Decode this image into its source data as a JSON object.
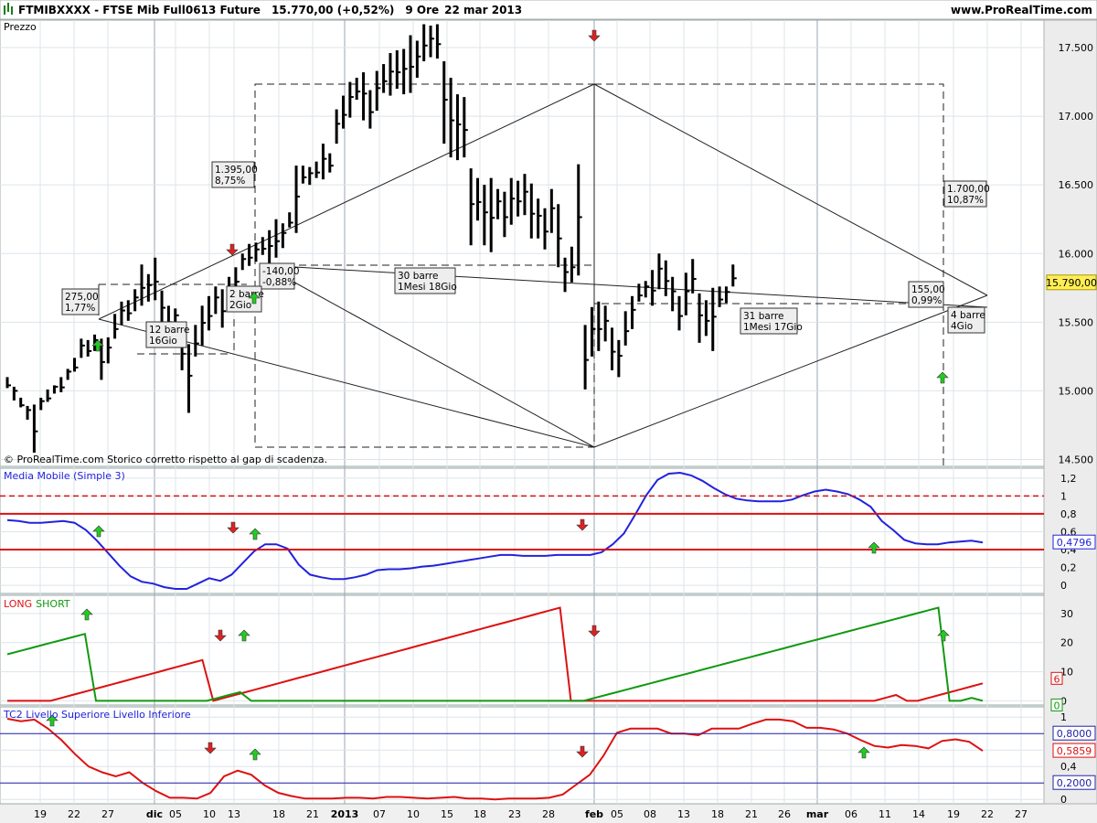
{
  "header": {
    "symbol": "FTMIBXXXX",
    "instrument": "FTSE Mib Full0613 Future",
    "last": "15.770,00 (+0,52%)",
    "interval": "9 Ore",
    "date": "22 mar 2013",
    "site": "www.ProRealTime.com"
  },
  "colors": {
    "background": "#f0f0f0",
    "panel": "#ffffff",
    "price_bars": "#000000",
    "ma_line": "#2222dd",
    "long_line": "#dd1111",
    "short_line": "#119911",
    "tc2_line": "#dd1111",
    "up_arrow": "#22cc22",
    "down_arrow": "#dd2222",
    "price_badge": "#ffee55"
  },
  "chart_data": [
    {
      "panel": "price",
      "type": "ohlc",
      "title": "Prezzo",
      "footnote": "© ProRealTime.com  Storico corretto rispetto al gap di scadenza.",
      "ylim": [
        14450,
        17700
      ],
      "y_ticks": [
        "17.500",
        "17.000",
        "16.500",
        "16.000",
        "15.500",
        "15.000",
        "14.500"
      ],
      "last_price_label": "15.790,00",
      "x_labels": [
        "19",
        "22",
        "27",
        "dic",
        "05",
        "10",
        "13",
        "18",
        "21",
        "2013",
        "07",
        "10",
        "15",
        "18",
        "23",
        "28",
        "feb",
        "05",
        "08",
        "13",
        "18",
        "21",
        "26",
        "mar",
        "06",
        "11",
        "14",
        "19",
        "22",
        "27"
      ],
      "bars": [
        [
          15100,
          15020
        ],
        [
          15030,
          14930
        ],
        [
          14950,
          14880
        ],
        [
          14890,
          14790
        ],
        [
          14900,
          14550
        ],
        [
          14950,
          14860
        ],
        [
          15010,
          14920
        ],
        [
          15040,
          14980
        ],
        [
          15100,
          14990
        ],
        [
          15160,
          15080
        ],
        [
          15240,
          15140
        ],
        [
          15380,
          15240
        ],
        [
          15370,
          15250
        ],
        [
          15410,
          15290
        ],
        [
          15380,
          15080
        ],
        [
          15390,
          15200
        ],
        [
          15560,
          15380
        ],
        [
          15650,
          15480
        ],
        [
          15660,
          15510
        ],
        [
          15740,
          15580
        ],
        [
          15920,
          15620
        ],
        [
          15850,
          15650
        ],
        [
          15970,
          15660
        ],
        [
          15730,
          15440
        ],
        [
          15620,
          15420
        ],
        [
          15600,
          15460
        ],
        [
          15430,
          15150
        ],
        [
          15340,
          14840
        ],
        [
          15480,
          15250
        ],
        [
          15620,
          15330
        ],
        [
          15690,
          15440
        ],
        [
          15760,
          15560
        ],
        [
          15740,
          15460
        ],
        [
          15830,
          15620
        ],
        [
          15900,
          15730
        ],
        [
          16000,
          15880
        ],
        [
          16070,
          15910
        ],
        [
          16080,
          15940
        ],
        [
          16120,
          15990
        ],
        [
          16170,
          15900
        ],
        [
          16250,
          15970
        ],
        [
          16220,
          16040
        ],
        [
          16300,
          16190
        ],
        [
          16640,
          16150
        ],
        [
          16640,
          16510
        ],
        [
          16630,
          16500
        ],
        [
          16670,
          16550
        ],
        [
          16800,
          16540
        ],
        [
          16730,
          16590
        ],
        [
          17050,
          16800
        ],
        [
          17150,
          16910
        ],
        [
          17250,
          16990
        ],
        [
          17280,
          17120
        ],
        [
          17320,
          16970
        ],
        [
          17190,
          16910
        ],
        [
          17330,
          17040
        ],
        [
          17380,
          17170
        ],
        [
          17460,
          17150
        ],
        [
          17480,
          17200
        ],
        [
          17490,
          17160
        ],
        [
          17590,
          17170
        ],
        [
          17550,
          17280
        ],
        [
          17670,
          17400
        ],
        [
          17660,
          17430
        ],
        [
          17670,
          17420
        ],
        [
          17400,
          16800
        ],
        [
          17280,
          16700
        ],
        [
          17160,
          16680
        ],
        [
          17140,
          16700
        ],
        [
          16620,
          16060
        ],
        [
          16550,
          16240
        ],
        [
          16500,
          16060
        ],
        [
          16550,
          16010
        ],
        [
          16470,
          16250
        ],
        [
          16450,
          16120
        ],
        [
          16550,
          16210
        ],
        [
          16530,
          16270
        ],
        [
          16580,
          16280
        ],
        [
          16510,
          16110
        ],
        [
          16400,
          16110
        ],
        [
          16330,
          16030
        ],
        [
          16470,
          16150
        ],
        [
          16360,
          15900
        ],
        [
          15970,
          15720
        ],
        [
          16050,
          15790
        ],
        [
          16650,
          15840
        ],
        [
          15480,
          15010
        ],
        [
          15610,
          15250
        ],
        [
          15650,
          15290
        ],
        [
          15620,
          15360
        ],
        [
          15460,
          15150
        ],
        [
          15370,
          15100
        ],
        [
          15580,
          15330
        ],
        [
          15690,
          15450
        ],
        [
          15780,
          15650
        ],
        [
          15800,
          15680
        ],
        [
          15880,
          15620
        ],
        [
          16000,
          15740
        ],
        [
          15950,
          15690
        ],
        [
          15830,
          15580
        ],
        [
          15690,
          15440
        ],
        [
          15860,
          15550
        ],
        [
          15960,
          15710
        ],
        [
          15710,
          15350
        ],
        [
          15660,
          15400
        ],
        [
          15750,
          15290
        ],
        [
          15760,
          15610
        ],
        [
          15760,
          15640
        ],
        [
          15920,
          15760
        ]
      ],
      "annotations": [
        {
          "text": [
            "275,00",
            "1,77%"
          ]
        },
        {
          "text": [
            "12 barre",
            "16Gio"
          ]
        },
        {
          "text": [
            "1.395,00",
            "8,75%"
          ]
        },
        {
          "text": [
            "-140,00",
            "-0,88%"
          ]
        },
        {
          "text": [
            "2 barre",
            "2Gio"
          ]
        },
        {
          "text": [
            "30 barre",
            "1Mesi 18Gio"
          ]
        },
        {
          "text": [
            "31 barre",
            "1Mesi 17Gio"
          ]
        },
        {
          "text": [
            "1.700,00",
            "10,87%"
          ]
        },
        {
          "text": [
            "155,00",
            "0,99%"
          ]
        },
        {
          "text": [
            "4 barre",
            "4Gio"
          ]
        }
      ]
    },
    {
      "panel": "ma",
      "type": "line",
      "title": "Media Mobile (Simple 3)",
      "ylim": [
        -0.05,
        1.27
      ],
      "y_ticks": [
        "1,2",
        "1",
        "0,8",
        "0,6",
        "0,4",
        "0,2",
        "0"
      ],
      "levels": [
        1.0,
        0.8,
        0.4
      ],
      "last_value_label": "0,4796",
      "series": [
        {
          "values": [
            0.73,
            0.72,
            0.7,
            0.7,
            0.71,
            0.72,
            0.7,
            0.62,
            0.5,
            0.36,
            0.22,
            0.1,
            0.04,
            0.02,
            -0.02,
            -0.04,
            -0.04,
            0.02,
            0.08,
            0.05,
            0.12,
            0.25,
            0.38,
            0.46,
            0.46,
            0.41,
            0.23,
            0.12,
            0.09,
            0.07,
            0.07,
            0.09,
            0.12,
            0.17,
            0.18,
            0.18,
            0.19,
            0.21,
            0.22,
            0.24,
            0.26,
            0.28,
            0.3,
            0.32,
            0.34,
            0.34,
            0.33,
            0.33,
            0.33,
            0.34,
            0.34,
            0.34,
            0.34,
            0.37,
            0.46,
            0.58,
            0.79,
            1.01,
            1.18,
            1.25,
            1.26,
            1.23,
            1.17,
            1.09,
            1.02,
            0.97,
            0.95,
            0.94,
            0.94,
            0.94,
            0.96,
            1.01,
            1.05,
            1.07,
            1.05,
            1.02,
            0.96,
            0.88,
            0.72,
            0.62,
            0.51,
            0.47,
            0.46,
            0.46,
            0.48,
            0.49,
            0.5,
            0.48
          ]
        }
      ]
    },
    {
      "panel": "longshort",
      "type": "line",
      "title": "",
      "legend": [
        {
          "label": "LONG"
        },
        {
          "label": "SHORT"
        }
      ],
      "ylim": [
        -0.5,
        35
      ],
      "y_ticks": [
        "30",
        "20",
        "10",
        "0"
      ],
      "last_values": [
        "6",
        "0"
      ],
      "series": [
        {
          "name": "LONG",
          "values": [
            0,
            0,
            0,
            0,
            0,
            1,
            2,
            3,
            4,
            5,
            6,
            7,
            8,
            9,
            10,
            11,
            12,
            13,
            14,
            0,
            1,
            2,
            3,
            4,
            5,
            6,
            7,
            8,
            9,
            10,
            11,
            12,
            13,
            14,
            15,
            16,
            17,
            18,
            19,
            20,
            21,
            22,
            23,
            24,
            25,
            26,
            27,
            28,
            29,
            30,
            31,
            32,
            0,
            0,
            0,
            0,
            0,
            0,
            0,
            0,
            0,
            0,
            0,
            0,
            0,
            0,
            0,
            0,
            0,
            0,
            0,
            0,
            0,
            0,
            0,
            0,
            0,
            0,
            0,
            0,
            0,
            1,
            2,
            0,
            0,
            1,
            2,
            3,
            4,
            5,
            6
          ]
        },
        {
          "name": "SHORT",
          "values": [
            16,
            17,
            18,
            19,
            20,
            21,
            22,
            23,
            0,
            0,
            0,
            0,
            0,
            0,
            0,
            0,
            0,
            0,
            0,
            1,
            2,
            3,
            0,
            0,
            0,
            0,
            0,
            0,
            0,
            0,
            0,
            0,
            0,
            0,
            0,
            0,
            0,
            0,
            0,
            0,
            0,
            0,
            0,
            0,
            0,
            0,
            0,
            0,
            0,
            0,
            0,
            0,
            0,
            1,
            2,
            3,
            4,
            5,
            6,
            7,
            8,
            9,
            10,
            11,
            12,
            13,
            14,
            15,
            16,
            17,
            18,
            19,
            20,
            21,
            22,
            23,
            24,
            25,
            26,
            27,
            28,
            29,
            30,
            31,
            32,
            0,
            0,
            1,
            0
          ]
        }
      ]
    },
    {
      "panel": "tc2",
      "type": "line",
      "title": "TC2 Livello Superiore Livello Inferiore",
      "ylim": [
        -0.02,
        1.08
      ],
      "y_ticks": [
        "1",
        "0,8",
        "0,6",
        "0,4",
        "0,2",
        "0"
      ],
      "levels": [
        0.8,
        0.2
      ],
      "last_value_labels": [
        "0,8000",
        "0,5859",
        "0,2000"
      ],
      "series": [
        {
          "values": [
            0.98,
            0.95,
            0.97,
            0.86,
            0.72,
            0.55,
            0.4,
            0.33,
            0.28,
            0.33,
            0.2,
            0.1,
            0.02,
            0.02,
            0.01,
            0.08,
            0.28,
            0.35,
            0.3,
            0.17,
            0.08,
            0.04,
            0.01,
            0.01,
            0.01,
            0.02,
            0.02,
            0.01,
            0.03,
            0.03,
            0.02,
            0.01,
            0.02,
            0.03,
            0.01,
            0.01,
            0.0,
            0.01,
            0.01,
            0.01,
            0.02,
            0.06,
            0.18,
            0.3,
            0.53,
            0.81,
            0.86,
            0.86,
            0.86,
            0.8,
            0.8,
            0.78,
            0.86,
            0.86,
            0.86,
            0.92,
            0.97,
            0.97,
            0.95,
            0.87,
            0.87,
            0.85,
            0.8,
            0.72,
            0.65,
            0.63,
            0.66,
            0.65,
            0.62,
            0.71,
            0.73,
            0.7,
            0.59
          ]
        }
      ]
    }
  ]
}
